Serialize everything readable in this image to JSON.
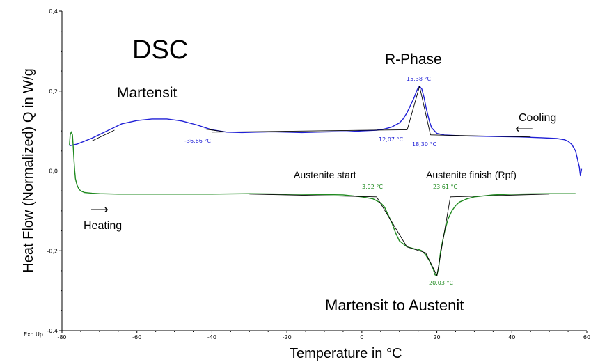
{
  "chart_data": {
    "type": "line",
    "title": "DSC",
    "xlabel": "Temperature in °C",
    "ylabel": "Heat Flow (Normalized) Q in W/g",
    "corner_label": "Exo Up",
    "xlim": [
      -80,
      60
    ],
    "ylim": [
      -0.4,
      0.4
    ],
    "x_ticks": [
      "-80",
      "-60",
      "-40",
      "-20",
      "0",
      "20",
      "40",
      "60"
    ],
    "y_ticks": [
      "0,4",
      "0,2",
      "0,0",
      "-0,2",
      "-0,4"
    ],
    "grid": false,
    "colors": {
      "cooling": "#1f1fd6",
      "heating": "#1f8a1f",
      "cooling_arrow": "#4472c4",
      "heating_arrow": "#70ad47",
      "arrow_text": "#7f7f7f"
    },
    "series": [
      {
        "key": "cooling",
        "x": [
          -78,
          -76,
          -72,
          -68,
          -64,
          -60,
          -56,
          -52,
          -48,
          -44,
          -40,
          -36,
          -32,
          -28,
          -24,
          -20,
          -16,
          -12,
          -8,
          -4,
          0,
          4,
          6,
          8,
          10,
          11,
          12,
          13,
          14,
          14.5,
          15,
          15.4,
          16,
          16.6,
          17.2,
          18,
          18.6,
          20,
          22,
          26,
          30,
          36,
          42,
          48,
          52,
          54,
          55,
          56,
          57,
          57.5,
          58,
          58.3,
          58.6
        ],
        "y": [
          0.063,
          0.067,
          0.082,
          0.1,
          0.118,
          0.126,
          0.13,
          0.13,
          0.125,
          0.115,
          0.103,
          0.097,
          0.096,
          0.097,
          0.098,
          0.097,
          0.096,
          0.097,
          0.098,
          0.098,
          0.1,
          0.102,
          0.105,
          0.11,
          0.12,
          0.13,
          0.145,
          0.165,
          0.185,
          0.198,
          0.208,
          0.212,
          0.205,
          0.183,
          0.155,
          0.125,
          0.108,
          0.094,
          0.09,
          0.088,
          0.087,
          0.086,
          0.085,
          0.083,
          0.081,
          0.078,
          0.074,
          0.066,
          0.05,
          0.03,
          0.01,
          -0.012,
          0.005
        ]
      },
      {
        "key": "heating",
        "x": [
          -78,
          -77.8,
          -77.5,
          -77.2,
          -77,
          -76.8,
          -76.6,
          -76.4,
          -76,
          -75.5,
          -75,
          -74,
          -72,
          -70,
          -65,
          -60,
          -50,
          -40,
          -30,
          -20,
          -10,
          -5,
          0,
          3,
          5,
          6,
          7,
          8,
          9,
          10,
          12,
          14,
          15,
          16,
          17,
          18,
          19,
          19.5,
          20,
          20.5,
          21,
          22,
          23,
          24,
          25,
          26,
          28,
          30,
          35,
          40,
          50,
          57
        ],
        "y": [
          0.065,
          0.09,
          0.098,
          0.09,
          0.06,
          0.03,
          0.0,
          -0.02,
          -0.035,
          -0.045,
          -0.05,
          -0.054,
          -0.056,
          -0.057,
          -0.058,
          -0.058,
          -0.058,
          -0.058,
          -0.057,
          -0.058,
          -0.059,
          -0.06,
          -0.065,
          -0.07,
          -0.08,
          -0.09,
          -0.11,
          -0.13,
          -0.155,
          -0.175,
          -0.19,
          -0.195,
          -0.196,
          -0.2,
          -0.21,
          -0.225,
          -0.245,
          -0.26,
          -0.262,
          -0.24,
          -0.2,
          -0.155,
          -0.12,
          -0.1,
          -0.087,
          -0.078,
          -0.07,
          -0.065,
          -0.06,
          -0.058,
          -0.057,
          -0.057
        ]
      }
    ],
    "annotations": {
      "martensit": "Martensit",
      "r_phase": "R-Phase",
      "cooling": "Cooling",
      "heating": "Heating",
      "austenite_start": "Austenite start",
      "austenite_finish": "Austenite finish (Rpf)",
      "martensit_to_austenit": "Martensit to Austenit",
      "cool_onset_low": "-36,66 °C",
      "cool_peak": "15,38 °C",
      "cool_onset_left": "12,07 °C",
      "cool_onset_right": "18,30 °C",
      "heat_start": "3,92 °C",
      "heat_finish": "23,61 °C",
      "heat_peak": "20,03 °C"
    }
  }
}
